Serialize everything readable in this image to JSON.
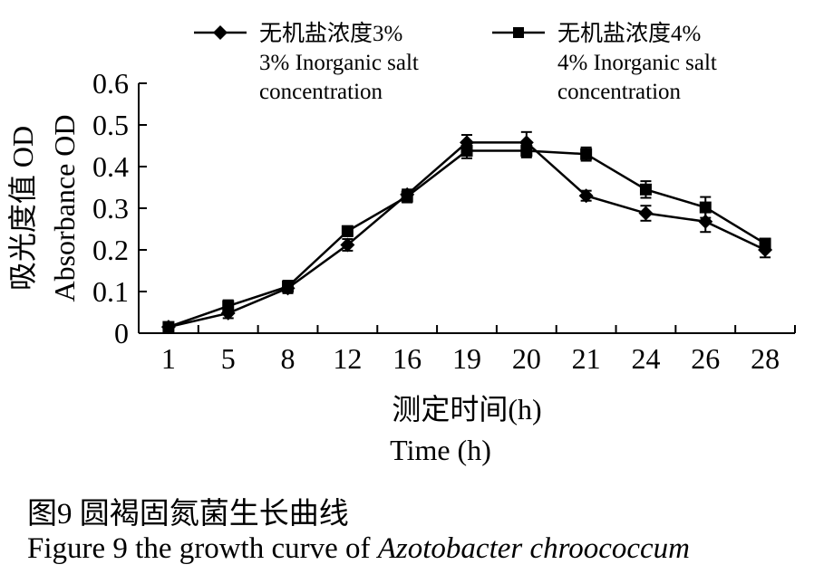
{
  "chart_data": {
    "type": "line",
    "categories": [
      "1",
      "5",
      "8",
      "12",
      "16",
      "19",
      "20",
      "21",
      "24",
      "26",
      "28"
    ],
    "series": [
      {
        "name_cn": "无机盐浓度3%",
        "name_en_1": "3% Inorganic salt",
        "name_en_2": "concentration",
        "marker": "diamond",
        "values": [
          0.015,
          0.048,
          0.108,
          0.212,
          0.333,
          0.458,
          0.458,
          0.33,
          0.288,
          0.268,
          0.2
        ],
        "errors": [
          0.005,
          0.012,
          0.012,
          0.014,
          0.012,
          0.018,
          0.025,
          0.012,
          0.018,
          0.025,
          0.018
        ]
      },
      {
        "name_cn": "无机盐浓度4%",
        "name_en_1": "4% Inorganic salt",
        "name_en_2": "concentration",
        "marker": "square",
        "values": [
          0.015,
          0.065,
          0.112,
          0.245,
          0.328,
          0.438,
          0.438,
          0.43,
          0.345,
          0.302,
          0.215
        ],
        "errors": [
          0.005,
          0.014,
          0.014,
          0.012,
          0.014,
          0.018,
          0.016,
          0.016,
          0.02,
          0.025,
          0.012
        ]
      }
    ],
    "y_ticks": [
      "0",
      "0.1",
      "0.2",
      "0.3",
      "0.4",
      "0.5",
      "0.6"
    ],
    "ylim": [
      0,
      0.6
    ],
    "ylabel_cn": "吸光度值 OD",
    "ylabel_en": "Absorbance OD",
    "xlabel_cn": "测定时间(h)",
    "xlabel_en": "Time (h)",
    "legend_position": "top",
    "grid": false
  },
  "caption": {
    "cn": "图9 圆褐固氮菌生长曲线",
    "en_prefix": "Figure 9  the growth curve of ",
    "en_species": "Azotobacter chroococcum"
  }
}
